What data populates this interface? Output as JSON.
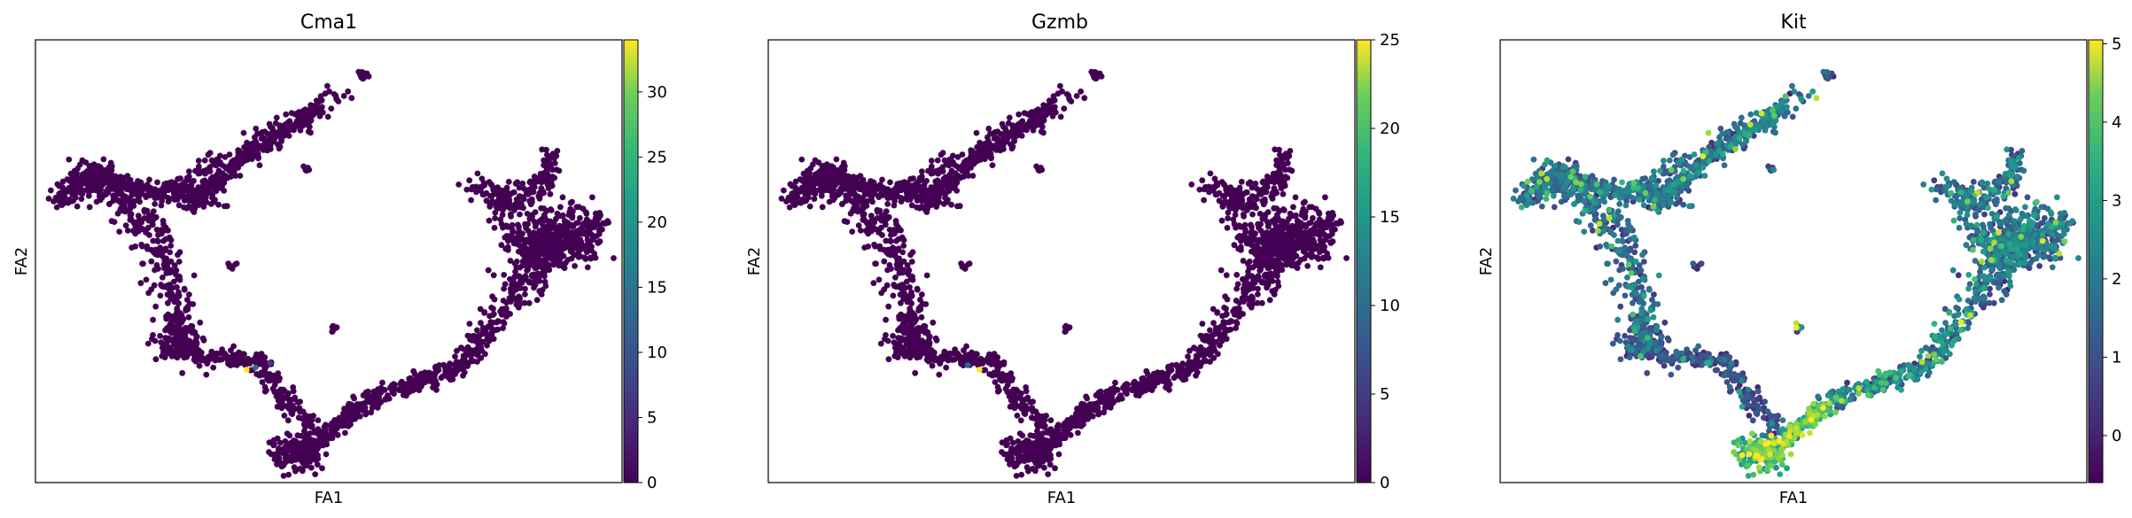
{
  "chart_data": [
    {
      "type": "scatter",
      "title": "Cma1",
      "xlabel": "FA1",
      "ylabel": "FA2",
      "colormap": "viridis",
      "colorbar": {
        "min": 0,
        "max": 34,
        "ticks": [
          0,
          5,
          10,
          15,
          20,
          25,
          30
        ]
      },
      "ticks_on_axes": false,
      "highlight_points": [
        {
          "x": 0.36,
          "y": 0.255,
          "value": 34
        },
        {
          "x": 0.375,
          "y": 0.26,
          "value": 12
        },
        {
          "x": 0.4,
          "y": 0.27,
          "value": 6
        }
      ]
    },
    {
      "type": "scatter",
      "title": "Gzmb",
      "xlabel": "FA1",
      "ylabel": "FA2",
      "colormap": "viridis",
      "colorbar": {
        "min": 0,
        "max": 25,
        "ticks": [
          0,
          5,
          10,
          15,
          20,
          25
        ]
      },
      "ticks_on_axes": false,
      "highlight_points": [
        {
          "x": 0.36,
          "y": 0.255,
          "value": 25
        },
        {
          "x": 0.34,
          "y": 0.265,
          "value": 8
        }
      ]
    },
    {
      "type": "scatter",
      "title": "Kit",
      "xlabel": "FA1",
      "ylabel": "FA2",
      "colormap": "viridis",
      "colorbar": {
        "min": -0.6,
        "max": 5.05,
        "ticks": [
          0,
          1,
          2,
          3,
          4,
          5
        ]
      },
      "ticks_on_axes": false,
      "value_pattern": "mixed expression, high values concentrated at bottom tip, along lower branch and right lobe"
    }
  ]
}
